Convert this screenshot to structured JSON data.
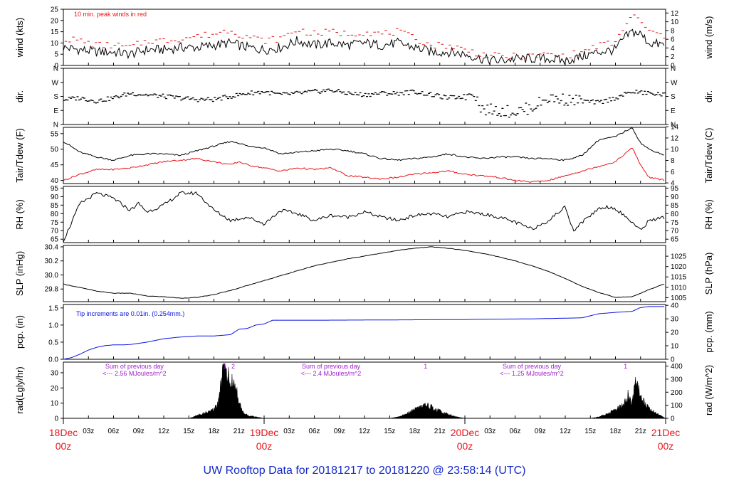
{
  "title": "UW Rooftop Data for 20181217  to  20181220 @ 23:58:14  (UTC)",
  "colors": {
    "black": "#000000",
    "red": "#e8141a",
    "blue": "#0a14e0",
    "purple": "#a21ecf",
    "title": "#1428c8"
  },
  "time_axis": {
    "hours_total": 72,
    "small_ticks": [
      "03z",
      "06z",
      "09z",
      "12z",
      "15z",
      "18z",
      "21z",
      "03z",
      "06z",
      "09z",
      "12z",
      "15z",
      "18z",
      "21z",
      "03z",
      "06z",
      "09z",
      "12z",
      "15z",
      "18z",
      "21z"
    ],
    "small_tick_hours": [
      3,
      6,
      9,
      12,
      15,
      18,
      21,
      27,
      30,
      33,
      36,
      39,
      42,
      45,
      51,
      54,
      57,
      60,
      63,
      66,
      69
    ],
    "day_labels": [
      {
        "top": "18Dec",
        "bottom": "00z",
        "hour": 0
      },
      {
        "top": "19Dec",
        "bottom": "00z",
        "hour": 24
      },
      {
        "top": "20Dec",
        "bottom": "00z",
        "hour": 48
      },
      {
        "top": "21Dec",
        "bottom": "00z",
        "hour": 72
      }
    ]
  },
  "chart_data": [
    {
      "type": "line",
      "ylabel": "wind (kts)",
      "ylabel_right": "wind (m/s)",
      "ylim": [
        0,
        25
      ],
      "yticks": [
        "0",
        "5",
        "10",
        "15",
        "20",
        "25"
      ],
      "ytick_values": [
        0,
        5,
        10,
        15,
        20,
        25
      ],
      "yticks_right": [
        "0",
        "2",
        "4",
        "6",
        "8",
        "10",
        "12"
      ],
      "ytick_right_values": [
        0,
        3.89,
        7.78,
        11.66,
        15.55,
        19.44,
        23.33
      ],
      "annotation": "10 min. peak winds in red",
      "x_hours": [
        0,
        2,
        4,
        6,
        8,
        10,
        12,
        14,
        16,
        18,
        20,
        21,
        22,
        24,
        26,
        28,
        30,
        32,
        34,
        36,
        38,
        40,
        42,
        44,
        46,
        48,
        50,
        52,
        54,
        56,
        58,
        60,
        62,
        64,
        66,
        67,
        68,
        69,
        70,
        72
      ],
      "values": [
        8,
        7,
        6,
        6,
        5,
        7,
        7,
        8,
        8,
        9,
        10,
        9,
        8,
        7,
        8,
        11,
        9,
        10,
        9,
        10,
        9,
        10,
        8,
        6,
        6,
        5,
        3,
        2,
        3,
        3,
        3,
        2,
        4,
        6,
        7,
        12,
        15,
        14,
        10,
        9
      ],
      "peak_values": [
        12,
        11,
        9,
        9,
        8,
        11,
        11,
        12,
        13,
        14,
        16,
        14,
        13,
        11,
        12,
        16,
        14,
        15,
        14,
        15,
        14,
        15,
        12,
        9,
        9,
        7,
        5,
        4,
        4,
        4,
        5,
        4,
        6,
        9,
        10,
        17,
        22,
        20,
        15,
        13
      ]
    },
    {
      "type": "scatter",
      "ylabel": "dir.",
      "ylabel_right": "dir.",
      "yticks": [
        "N",
        "E",
        "S",
        "W",
        "N"
      ],
      "ytick_values": [
        0,
        90,
        180,
        270,
        360
      ],
      "ylim": [
        0,
        360
      ],
      "x_hours": [
        0,
        2,
        4,
        6,
        8,
        10,
        12,
        14,
        16,
        18,
        20,
        22,
        24,
        26,
        28,
        30,
        32,
        34,
        36,
        38,
        40,
        42,
        44,
        46,
        48,
        49,
        50,
        52,
        54,
        56,
        58,
        60,
        62,
        64,
        66,
        68,
        70,
        72
      ],
      "values": [
        160,
        170,
        150,
        170,
        200,
        190,
        180,
        170,
        160,
        160,
        180,
        200,
        210,
        190,
        200,
        210,
        220,
        200,
        190,
        200,
        200,
        210,
        190,
        170,
        180,
        220,
        100,
        90,
        80,
        110,
        170,
        160,
        150,
        140,
        170,
        210,
        200,
        190
      ]
    },
    {
      "type": "line",
      "ylabel": "Tair/Tdew (F)",
      "ylabel_right": "Tair/Tdew (C)",
      "ylim": [
        39,
        57
      ],
      "yticks": [
        "40",
        "45",
        "50",
        "55"
      ],
      "ytick_values": [
        40,
        45,
        50,
        55
      ],
      "yticks_right": [
        "4",
        "6",
        "8",
        "10",
        "12",
        "14"
      ],
      "ytick_right_values": [
        39.2,
        42.8,
        46.4,
        50,
        53.6,
        57.2
      ],
      "x_hours": [
        0,
        2,
        4,
        6,
        8,
        10,
        12,
        14,
        16,
        18,
        20,
        21,
        22,
        24,
        26,
        28,
        30,
        32,
        34,
        36,
        38,
        40,
        42,
        44,
        46,
        48,
        50,
        52,
        54,
        56,
        58,
        60,
        62,
        64,
        66,
        68,
        69,
        70,
        72
      ],
      "series": [
        {
          "values": [
            52.5,
            49,
            47.5,
            46.5,
            48,
            48.5,
            48.5,
            48,
            49.5,
            51,
            52.5,
            52,
            51,
            50.5,
            48.5,
            49,
            49.5,
            50,
            49.5,
            48.5,
            47,
            46.5,
            47,
            47.5,
            48.5,
            47.5,
            47,
            47.5,
            47.5,
            47,
            47,
            46.5,
            48,
            53,
            54,
            57,
            52,
            50,
            48
          ]
        },
        {
          "values": [
            40,
            42,
            43.5,
            43.5,
            44,
            45,
            46,
            46.5,
            47,
            46,
            45,
            46,
            45,
            44,
            43,
            44,
            43.5,
            44,
            41.5,
            41,
            40.5,
            41,
            42,
            42.5,
            43,
            42,
            41.5,
            41,
            40,
            39.5,
            40,
            41.5,
            43,
            44.5,
            46,
            50.5,
            45,
            41,
            40
          ]
        }
      ]
    },
    {
      "type": "line",
      "ylabel": "RH (%)",
      "ylabel_right": "RH (%)",
      "ylim": [
        63,
        96
      ],
      "yticks": [
        "65",
        "70",
        "75",
        "80",
        "85",
        "90",
        "95"
      ],
      "ytick_values": [
        65,
        70,
        75,
        80,
        85,
        90,
        95
      ],
      "x_hours": [
        0,
        2,
        4,
        6,
        8,
        9,
        10,
        12,
        14,
        16,
        18,
        20,
        22,
        24,
        26,
        28,
        30,
        32,
        34,
        36,
        38,
        40,
        42,
        44,
        46,
        48,
        50,
        52,
        54,
        56,
        58,
        60,
        61,
        62,
        64,
        65,
        66,
        68,
        69,
        70,
        72
      ],
      "values": [
        64,
        86,
        92,
        89,
        82,
        86,
        81,
        85,
        92,
        92,
        82,
        76,
        78,
        74,
        82,
        80,
        76,
        79,
        78,
        81,
        78,
        76,
        79,
        80,
        78,
        81,
        80,
        78,
        75,
        71,
        76,
        84,
        70,
        75,
        83,
        84,
        83,
        75,
        70,
        76,
        78
      ]
    },
    {
      "type": "line",
      "ylabel": "SLP (inHg)",
      "ylabel_right": "SLP (hPa)",
      "ylim": [
        29.62,
        30.42
      ],
      "yticks": [
        "29.8",
        "30.0",
        "30.2",
        "30.4"
      ],
      "ytick_values": [
        29.8,
        30.0,
        30.2,
        30.4
      ],
      "yticks_right": [
        "1005",
        "1010",
        "1015",
        "1020",
        "1025"
      ],
      "ytick_right_values": [
        29.676,
        29.824,
        29.972,
        30.119,
        30.267
      ],
      "x_hours": [
        0,
        2,
        4,
        6,
        8,
        10,
        12,
        14,
        16,
        18,
        20,
        22,
        24,
        26,
        28,
        30,
        32,
        34,
        36,
        38,
        40,
        42,
        44,
        46,
        48,
        50,
        52,
        54,
        56,
        58,
        60,
        62,
        64,
        66,
        68,
        70,
        72
      ],
      "values": [
        29.87,
        29.82,
        29.77,
        29.74,
        29.74,
        29.7,
        29.69,
        29.67,
        29.68,
        29.72,
        29.78,
        29.85,
        29.92,
        29.99,
        30.06,
        30.13,
        30.18,
        30.23,
        30.27,
        30.31,
        30.35,
        30.38,
        30.4,
        30.38,
        30.35,
        30.31,
        30.26,
        30.2,
        30.13,
        30.05,
        29.95,
        29.84,
        29.75,
        29.68,
        29.69,
        29.79,
        29.88
      ]
    },
    {
      "type": "line",
      "ylabel": "pcp. (in)",
      "ylabel_right": "pcp. (mm)",
      "ylim": [
        0,
        1.6
      ],
      "yticks": [
        "0.0",
        "0.5",
        "1.0",
        "1.5"
      ],
      "ytick_values": [
        0,
        0.5,
        1.0,
        1.5
      ],
      "yticks_right": [
        "0",
        "10",
        "20",
        "30",
        "40"
      ],
      "ytick_right_values": [
        0,
        0.394,
        0.787,
        1.181,
        1.575
      ],
      "annotation": "Tip increments are 0.01in. (0.254mm.)",
      "x_hours": [
        0,
        1,
        2,
        3,
        4,
        5,
        6,
        7,
        8,
        10,
        12,
        14,
        16,
        18,
        20,
        21,
        22,
        23,
        24,
        25,
        26,
        28,
        30,
        40,
        48,
        50,
        56,
        60,
        62,
        64,
        66,
        68,
        69,
        70,
        72
      ],
      "values": [
        0,
        0.05,
        0.15,
        0.27,
        0.35,
        0.4,
        0.42,
        0.42,
        0.43,
        0.5,
        0.6,
        0.65,
        0.68,
        0.68,
        0.72,
        0.88,
        0.9,
        1.0,
        1.03,
        1.14,
        1.14,
        1.14,
        1.14,
        1.15,
        1.16,
        1.17,
        1.18,
        1.2,
        1.21,
        1.33,
        1.37,
        1.4,
        1.51,
        1.54,
        1.54
      ]
    },
    {
      "type": "area",
      "ylabel": "rad(Lgly/hr)",
      "ylabel_right": "rad (W/m^2)",
      "ylim": [
        0,
        37
      ],
      "yticks": [
        "0",
        "10",
        "20",
        "30"
      ],
      "ytick_values": [
        0,
        10,
        20,
        30
      ],
      "yticks_right": [
        "0",
        "100",
        "200",
        "300",
        "400"
      ],
      "ytick_right_values": [
        0,
        8.6,
        17.2,
        25.8,
        34.4
      ],
      "annotations": [
        {
          "lines": [
            "Sum of previous day",
            "<--- 2.56 MJoules/m^2"
          ],
          "hour": 8.5
        },
        {
          "lines": [
            "Sum of previous day",
            "<--- 2.4 MJoules/m^2"
          ],
          "hour": 32
        },
        {
          "lines": [
            "Sum of previous day",
            "<--- 1.25 MJoules/m^2"
          ],
          "hour": 56
        }
      ],
      "markers": [
        {
          "label": "1",
          "hour": 19.3
        },
        {
          "label": "2",
          "hour": 20.3
        },
        {
          "label": "1",
          "hour": 43.3
        },
        {
          "label": "1",
          "hour": 67.2
        }
      ],
      "days": [
        {
          "x_hours": [
            15,
            16,
            17,
            18,
            18.5,
            19,
            19.5,
            20,
            20.5,
            21,
            21.5,
            22,
            23,
            24
          ],
          "values": [
            0,
            2,
            4,
            6,
            10,
            30,
            33,
            28,
            25,
            10,
            4,
            2,
            1,
            0
          ]
        },
        {
          "x_hours": [
            39,
            40,
            41,
            42,
            43,
            44,
            45,
            46,
            47,
            48
          ],
          "values": [
            0,
            1,
            3,
            6,
            9,
            8,
            5,
            3,
            1,
            0
          ]
        },
        {
          "x_hours": [
            63,
            64,
            65,
            66,
            67,
            67.5,
            68,
            68.5,
            69,
            70,
            71,
            72
          ],
          "values": [
            0,
            1,
            3,
            6,
            9,
            16,
            10,
            28,
            14,
            7,
            3,
            0
          ]
        }
      ]
    }
  ]
}
